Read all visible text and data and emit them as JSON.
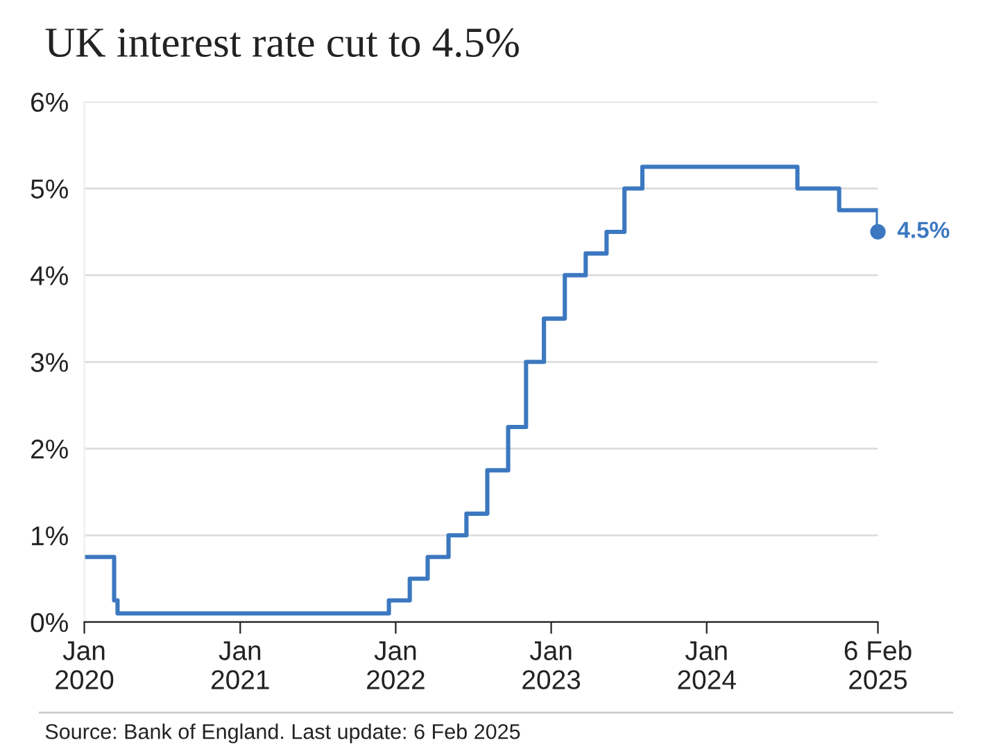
{
  "chart_data": {
    "type": "step",
    "title": "UK interest rate cut to 4.5%",
    "series": [
      {
        "color": "#3c78c0",
        "x": [
          "2020-01-01",
          "2020-03-11",
          "2020-03-19",
          "2021-12-16",
          "2022-02-03",
          "2022-03-17",
          "2022-05-05",
          "2022-06-16",
          "2022-08-04",
          "2022-09-22",
          "2022-11-03",
          "2022-12-15",
          "2023-02-02",
          "2023-03-23",
          "2023-05-11",
          "2023-06-22",
          "2023-08-03",
          "2024-08-01",
          "2024-11-07",
          "2025-02-06"
        ],
        "values": [
          0.75,
          0.25,
          0.1,
          0.25,
          0.5,
          0.75,
          1.0,
          1.25,
          1.75,
          2.25,
          3.0,
          3.5,
          4.0,
          4.25,
          4.5,
          5.0,
          5.25,
          5.0,
          4.75,
          4.5
        ]
      }
    ],
    "xlim": [
      "2020-01-01",
      "2025-02-06"
    ],
    "xticks": [
      {
        "value": "2020-01-01",
        "label": "Jan\n2020"
      },
      {
        "value": "2021-01-01",
        "label": "Jan\n2021"
      },
      {
        "value": "2022-01-01",
        "label": "Jan\n2022"
      },
      {
        "value": "2023-01-01",
        "label": "Jan\n2023"
      },
      {
        "value": "2024-01-01",
        "label": "Jan\n2024"
      },
      {
        "value": "2025-02-06",
        "label": "6 Feb\n2025"
      }
    ],
    "ylim": [
      0,
      6
    ],
    "yticks": [
      {
        "value": 0,
        "label": "0%"
      },
      {
        "value": 1,
        "label": "1%"
      },
      {
        "value": 2,
        "label": "2%"
      },
      {
        "value": 3,
        "label": "3%"
      },
      {
        "value": 4,
        "label": "4%"
      },
      {
        "value": 5,
        "label": "5%"
      },
      {
        "value": 6,
        "label": "6%"
      }
    ],
    "grid": "y",
    "annotations": [
      {
        "text": "4.5%",
        "x": "2025-02-06",
        "y": 4.5
      },
      "Source: Bank of England. Last update: 6 Feb 2025"
    ]
  }
}
